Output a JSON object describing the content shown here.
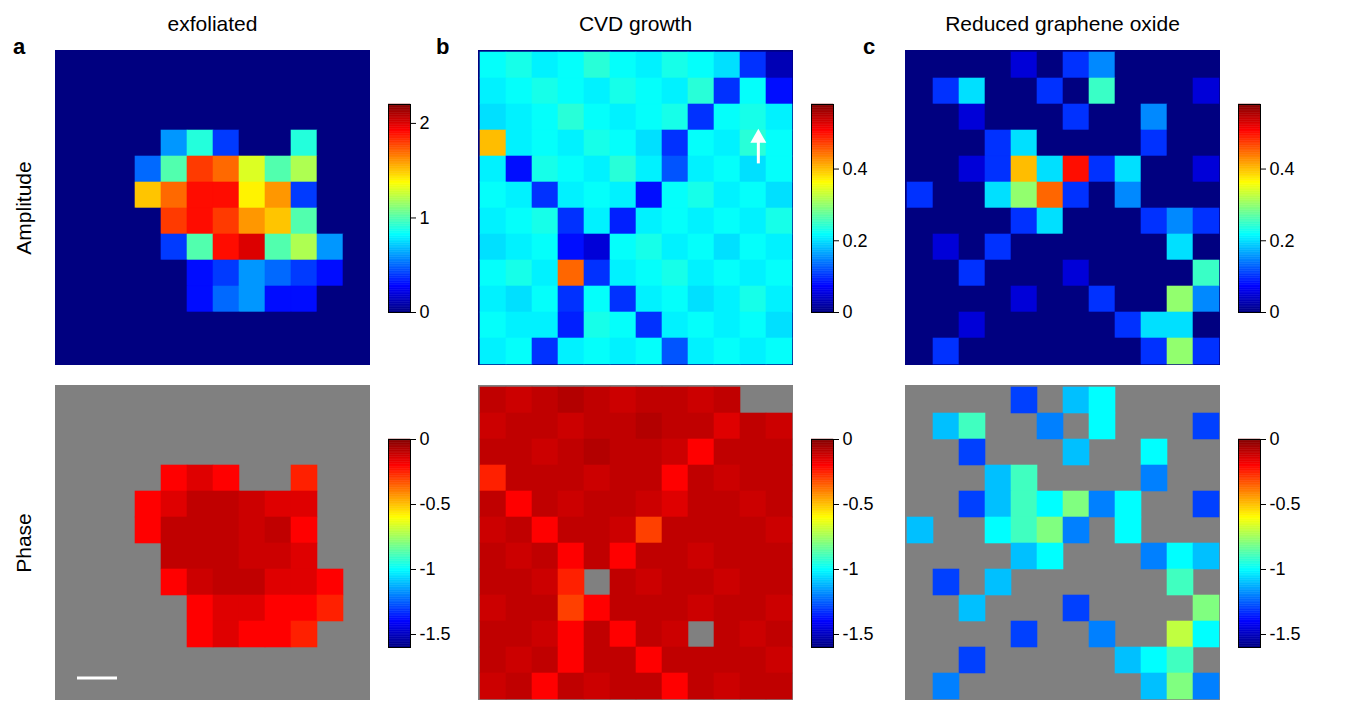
{
  "row_labels": [
    "Amplitude",
    "Phase"
  ],
  "chart_data": [
    {
      "type": "heatmap",
      "letter": "a",
      "title": "exfoliated",
      "tick_labels": false,
      "amplitude": {
        "colorbar": {
          "range": [
            0,
            2.2
          ],
          "ticks": [
            0,
            1,
            2
          ]
        },
        "cells": [
          [
            0,
            0,
            0,
            0,
            0,
            0,
            0,
            0,
            0,
            0,
            0,
            0
          ],
          [
            0,
            0,
            0,
            0,
            0,
            0,
            0,
            0,
            0,
            0,
            0,
            0
          ],
          [
            0,
            0,
            0,
            0,
            0,
            0,
            0,
            0,
            0,
            0,
            0,
            0
          ],
          [
            0,
            0,
            0,
            0,
            0.6,
            0.9,
            0.4,
            0,
            0,
            0.9,
            0,
            0
          ],
          [
            0,
            0,
            0,
            0.5,
            1.0,
            1.8,
            1.7,
            1.3,
            1.0,
            1.2,
            0,
            0
          ],
          [
            0,
            0,
            0,
            1.5,
            1.7,
            1.9,
            1.9,
            1.4,
            1.6,
            0.4,
            0,
            0
          ],
          [
            0,
            0,
            0,
            0,
            1.8,
            1.9,
            1.8,
            1.6,
            1.5,
            1.0,
            0,
            0
          ],
          [
            0,
            0,
            0,
            0,
            0.4,
            1.0,
            1.9,
            2.0,
            1.0,
            1.2,
            0.6,
            0
          ],
          [
            0,
            0,
            0,
            0,
            0,
            0.3,
            0.4,
            0.6,
            0.5,
            0.4,
            0.3,
            0
          ],
          [
            0,
            0,
            0,
            0,
            0,
            0.3,
            0.5,
            0.6,
            0.3,
            0.3,
            0,
            0
          ],
          [
            0,
            0,
            0,
            0,
            0,
            0,
            0,
            0,
            0,
            0,
            0,
            0
          ],
          [
            0,
            0,
            0,
            0,
            0,
            0,
            0,
            0,
            0,
            0,
            0,
            0
          ]
        ]
      },
      "phase": {
        "colorbar": {
          "range": [
            -1.6,
            0
          ],
          "ticks": [
            0,
            -0.5,
            -1,
            -1.5
          ]
        },
        "cells": [
          [
            null,
            null,
            null,
            null,
            null,
            null,
            null,
            null,
            null,
            null,
            null,
            null
          ],
          [
            null,
            null,
            null,
            null,
            null,
            null,
            null,
            null,
            null,
            null,
            null,
            null
          ],
          [
            null,
            null,
            null,
            null,
            null,
            null,
            null,
            null,
            null,
            null,
            null,
            null
          ],
          [
            null,
            null,
            null,
            null,
            -0.2,
            -0.15,
            -0.2,
            null,
            null,
            -0.25,
            null,
            null
          ],
          [
            null,
            null,
            null,
            -0.2,
            -0.15,
            -0.1,
            -0.1,
            -0.12,
            -0.15,
            -0.15,
            null,
            null
          ],
          [
            null,
            null,
            null,
            -0.2,
            -0.1,
            -0.1,
            -0.1,
            -0.12,
            -0.1,
            -0.2,
            null,
            null
          ],
          [
            null,
            null,
            null,
            null,
            -0.1,
            -0.1,
            -0.1,
            -0.12,
            -0.12,
            -0.15,
            null,
            null
          ],
          [
            null,
            null,
            null,
            null,
            -0.2,
            -0.12,
            -0.1,
            -0.1,
            -0.15,
            -0.15,
            -0.2,
            null
          ],
          [
            null,
            null,
            null,
            null,
            null,
            -0.2,
            -0.15,
            -0.15,
            -0.2,
            -0.2,
            -0.25,
            null
          ],
          [
            null,
            null,
            null,
            null,
            null,
            -0.2,
            -0.15,
            -0.2,
            -0.2,
            -0.25,
            null,
            null
          ],
          [
            null,
            null,
            null,
            null,
            null,
            null,
            null,
            null,
            null,
            null,
            null,
            null
          ],
          [
            null,
            null,
            null,
            null,
            null,
            null,
            null,
            null,
            null,
            null,
            null,
            null
          ]
        ]
      }
    },
    {
      "type": "heatmap",
      "letter": "b",
      "title": "CVD growth",
      "tick_labels": false,
      "amplitude": {
        "colorbar": {
          "range": [
            0,
            0.58
          ],
          "ticks": [
            0,
            0.2,
            0.4
          ]
        },
        "cells": [
          [
            0.22,
            0.23,
            0.21,
            0.22,
            0.24,
            0.22,
            0.21,
            0.23,
            0.22,
            0.2,
            0.1,
            0.03
          ],
          [
            0.21,
            0.22,
            0.23,
            0.22,
            0.21,
            0.23,
            0.22,
            0.21,
            0.24,
            0.1,
            0.22,
            0.08
          ],
          [
            0.2,
            0.21,
            0.22,
            0.24,
            0.22,
            0.21,
            0.22,
            0.23,
            0.1,
            0.22,
            0.23,
            0.21
          ],
          [
            0.4,
            0.21,
            0.22,
            0.21,
            0.23,
            0.22,
            0.2,
            0.1,
            0.22,
            0.21,
            0.24,
            0.22
          ],
          [
            0.21,
            0.08,
            0.23,
            0.22,
            0.21,
            0.24,
            0.21,
            0.12,
            0.21,
            0.22,
            0.2,
            0.22
          ],
          [
            0.22,
            0.21,
            0.1,
            0.21,
            0.22,
            0.21,
            0.08,
            0.22,
            0.23,
            0.21,
            0.22,
            0.2
          ],
          [
            0.21,
            0.22,
            0.23,
            0.1,
            0.21,
            0.09,
            0.21,
            0.22,
            0.21,
            0.22,
            0.21,
            0.23
          ],
          [
            0.2,
            0.21,
            0.22,
            0.08,
            0.05,
            0.22,
            0.23,
            0.21,
            0.22,
            0.2,
            0.22,
            0.21
          ],
          [
            0.22,
            0.23,
            0.21,
            0.45,
            0.1,
            0.21,
            0.22,
            0.23,
            0.21,
            0.22,
            0.21,
            0.22
          ],
          [
            0.21,
            0.2,
            0.22,
            0.1,
            0.22,
            0.1,
            0.21,
            0.22,
            0.2,
            0.21,
            0.23,
            0.21
          ],
          [
            0.22,
            0.21,
            0.21,
            0.09,
            0.23,
            0.22,
            0.1,
            0.21,
            0.22,
            0.21,
            0.22,
            0.2
          ],
          [
            0.21,
            0.22,
            0.1,
            0.21,
            0.22,
            0.21,
            0.22,
            0.12,
            0.21,
            0.22,
            0.21,
            0.22
          ]
        ]
      },
      "phase": {
        "colorbar": {
          "range": [
            -1.6,
            0
          ],
          "ticks": [
            0,
            -0.5,
            -1,
            -1.5
          ]
        },
        "cells": [
          [
            -0.1,
            -0.12,
            -0.1,
            -0.08,
            -0.1,
            -0.12,
            -0.1,
            -0.1,
            -0.12,
            -0.1,
            null,
            null
          ],
          [
            -0.12,
            -0.1,
            -0.1,
            -0.12,
            -0.1,
            -0.1,
            -0.08,
            -0.1,
            -0.1,
            -0.15,
            -0.1,
            -0.12
          ],
          [
            -0.1,
            -0.1,
            -0.12,
            -0.1,
            -0.08,
            -0.1,
            -0.1,
            -0.12,
            -0.2,
            -0.1,
            -0.1,
            -0.1
          ],
          [
            -0.25,
            -0.1,
            -0.1,
            -0.1,
            -0.12,
            -0.1,
            -0.1,
            -0.2,
            -0.1,
            -0.12,
            -0.1,
            -0.1
          ],
          [
            -0.1,
            -0.2,
            -0.1,
            -0.12,
            -0.1,
            -0.1,
            -0.12,
            -0.15,
            -0.1,
            -0.1,
            -0.12,
            -0.1
          ],
          [
            -0.12,
            -0.1,
            -0.2,
            -0.1,
            -0.1,
            -0.12,
            -0.3,
            -0.1,
            -0.1,
            -0.1,
            -0.1,
            -0.12
          ],
          [
            -0.1,
            -0.12,
            -0.1,
            -0.2,
            -0.1,
            -0.2,
            -0.1,
            -0.1,
            -0.12,
            -0.1,
            -0.1,
            -0.1
          ],
          [
            -0.1,
            -0.1,
            -0.12,
            -0.25,
            null,
            -0.1,
            -0.12,
            -0.1,
            -0.1,
            -0.12,
            -0.1,
            -0.1
          ],
          [
            -0.12,
            -0.1,
            -0.1,
            -0.3,
            -0.2,
            -0.1,
            -0.1,
            -0.1,
            -0.12,
            -0.1,
            -0.1,
            -0.12
          ],
          [
            -0.1,
            -0.1,
            -0.12,
            -0.2,
            -0.1,
            -0.2,
            -0.1,
            -0.12,
            null,
            -0.1,
            -0.12,
            -0.1
          ],
          [
            -0.1,
            -0.12,
            -0.1,
            -0.2,
            -0.1,
            -0.1,
            -0.2,
            -0.1,
            -0.1,
            -0.1,
            -0.1,
            -0.12
          ],
          [
            -0.12,
            -0.1,
            -0.2,
            -0.1,
            -0.12,
            -0.1,
            -0.1,
            -0.2,
            -0.1,
            -0.12,
            -0.1,
            -0.1
          ]
        ]
      }
    },
    {
      "type": "heatmap",
      "letter": "c",
      "title": "Reduced graphene oxide",
      "tick_labels": false,
      "amplitude": {
        "colorbar": {
          "range": [
            0,
            0.58
          ],
          "ticks": [
            0,
            0.2,
            0.4
          ]
        },
        "cells": [
          [
            0,
            0,
            0,
            0,
            0.05,
            0,
            0.1,
            0.15,
            0,
            0,
            0,
            0
          ],
          [
            0,
            0.1,
            0.2,
            0,
            0,
            0.1,
            0,
            0.25,
            0,
            0,
            0,
            0.05
          ],
          [
            0,
            0,
            0.05,
            0,
            0,
            0,
            0.1,
            0,
            0,
            0.15,
            0,
            0
          ],
          [
            0,
            0,
            0,
            0.1,
            0.2,
            0,
            0,
            0,
            0,
            0.1,
            0,
            0
          ],
          [
            0,
            0,
            0.05,
            0.1,
            0.4,
            0.2,
            0.5,
            0.1,
            0.2,
            0,
            0,
            0.05
          ],
          [
            0.1,
            0,
            0,
            0.2,
            0.3,
            0.45,
            0.1,
            0,
            0.15,
            0,
            0,
            0
          ],
          [
            0,
            0,
            0,
            0,
            0.1,
            0.2,
            0,
            0,
            0,
            0.1,
            0.15,
            0.1
          ],
          [
            0,
            0.05,
            0,
            0.1,
            0,
            0,
            0,
            0,
            0,
            0,
            0.2,
            0
          ],
          [
            0,
            0,
            0.1,
            0,
            0,
            0,
            0.05,
            0,
            0,
            0,
            0,
            0.25
          ],
          [
            0,
            0,
            0,
            0,
            0.05,
            0,
            0,
            0.1,
            0,
            0,
            0.3,
            0.15
          ],
          [
            0,
            0,
            0.05,
            0,
            0,
            0,
            0,
            0,
            0.1,
            0.2,
            0.2,
            0
          ],
          [
            0,
            0.1,
            0,
            0,
            0,
            0,
            0,
            0,
            0,
            0.1,
            0.3,
            0.1
          ]
        ]
      },
      "phase": {
        "colorbar": {
          "range": [
            -1.6,
            0
          ],
          "ticks": [
            0,
            -0.5,
            -1,
            -1.5
          ]
        },
        "cells": [
          [
            null,
            null,
            null,
            null,
            -1.3,
            null,
            -1.1,
            -1.0,
            null,
            null,
            null,
            null
          ],
          [
            null,
            -1.1,
            -0.9,
            null,
            null,
            -1.2,
            null,
            -1.0,
            null,
            null,
            null,
            -1.3
          ],
          [
            null,
            null,
            -1.3,
            null,
            null,
            null,
            -1.1,
            null,
            null,
            -1.0,
            null,
            null
          ],
          [
            null,
            null,
            null,
            -1.1,
            -0.9,
            null,
            null,
            null,
            null,
            -1.2,
            null,
            null
          ],
          [
            null,
            null,
            -1.3,
            -1.1,
            -0.9,
            -1.0,
            -0.8,
            -1.2,
            -1.0,
            null,
            null,
            -1.3
          ],
          [
            -1.1,
            null,
            null,
            -1.0,
            -0.9,
            -0.8,
            -1.2,
            null,
            -1.0,
            null,
            null,
            null
          ],
          [
            null,
            null,
            null,
            null,
            -1.1,
            -1.0,
            null,
            null,
            null,
            -1.2,
            -1.0,
            -1.1
          ],
          [
            null,
            -1.3,
            null,
            -1.1,
            null,
            null,
            null,
            null,
            null,
            null,
            -0.9,
            null
          ],
          [
            null,
            null,
            -1.1,
            null,
            null,
            null,
            -1.3,
            null,
            null,
            null,
            null,
            -0.8
          ],
          [
            null,
            null,
            null,
            null,
            -1.3,
            null,
            null,
            -1.2,
            null,
            null,
            -0.7,
            -1.0
          ],
          [
            null,
            null,
            -1.3,
            null,
            null,
            null,
            null,
            null,
            -1.1,
            -1.0,
            -0.9,
            null
          ],
          [
            null,
            -1.2,
            null,
            null,
            null,
            null,
            null,
            null,
            null,
            -1.1,
            -0.8,
            -1.2
          ]
        ]
      }
    }
  ]
}
